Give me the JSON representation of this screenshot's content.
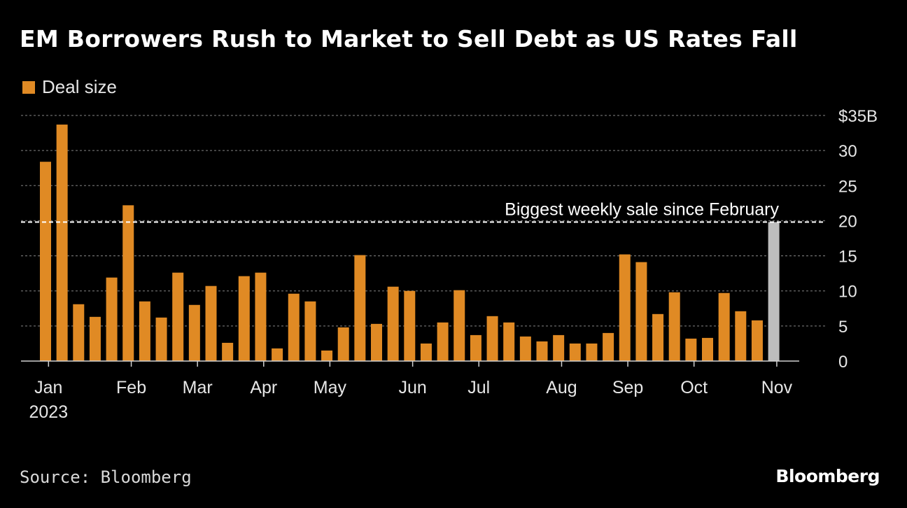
{
  "title": "EM Borrowers Rush to Market to Sell Debt as US Rates Fall",
  "legend": {
    "label": "Deal size",
    "color": "#e08a24"
  },
  "source": "Source: Bloomberg",
  "brand": "Bloomberg",
  "chart_data": {
    "type": "bar",
    "series": [
      {
        "name": "Deal size",
        "color": "#e08a24",
        "values": [
          28.4,
          33.7,
          8.1,
          6.3,
          11.9,
          22.2,
          8.5,
          6.2,
          12.6,
          8.0,
          10.7,
          2.6,
          12.1,
          12.6,
          1.8,
          9.6,
          8.5,
          1.5,
          4.8,
          15.1,
          5.3,
          10.6,
          10.0,
          2.5,
          5.5,
          10.1,
          3.7,
          6.4,
          5.5,
          3.5,
          2.8,
          3.7,
          2.5,
          2.5,
          4.0,
          15.2,
          14.1,
          6.7,
          9.8,
          3.2,
          3.3,
          9.7,
          7.1,
          5.8,
          19.8
        ]
      }
    ],
    "highlight": {
      "index": 44,
      "color": "#bdbdbd"
    },
    "yaxis": {
      "ylim": [
        0,
        35
      ],
      "ticks": [
        0,
        5,
        10,
        15,
        20,
        25,
        30,
        35
      ],
      "tick_labels": [
        "0",
        "5",
        "10",
        "15",
        "20",
        "25",
        "30",
        "$35B"
      ],
      "position": "right"
    },
    "xaxis": {
      "month_labels": [
        "Jan",
        "Feb",
        "Mar",
        "Apr",
        "May",
        "Jun",
        "Jul",
        "Aug",
        "Sep",
        "Oct",
        "Nov"
      ],
      "month_bar_position": [
        0.5,
        5.5,
        9.5,
        13.5,
        17.5,
        22.5,
        26.5,
        31.5,
        35.5,
        39.5,
        44.5
      ],
      "year_label": "2023"
    },
    "reference_line": {
      "value": 19.8,
      "label": "Biggest weekly sale since February",
      "style": "dashed"
    },
    "grid": true
  }
}
